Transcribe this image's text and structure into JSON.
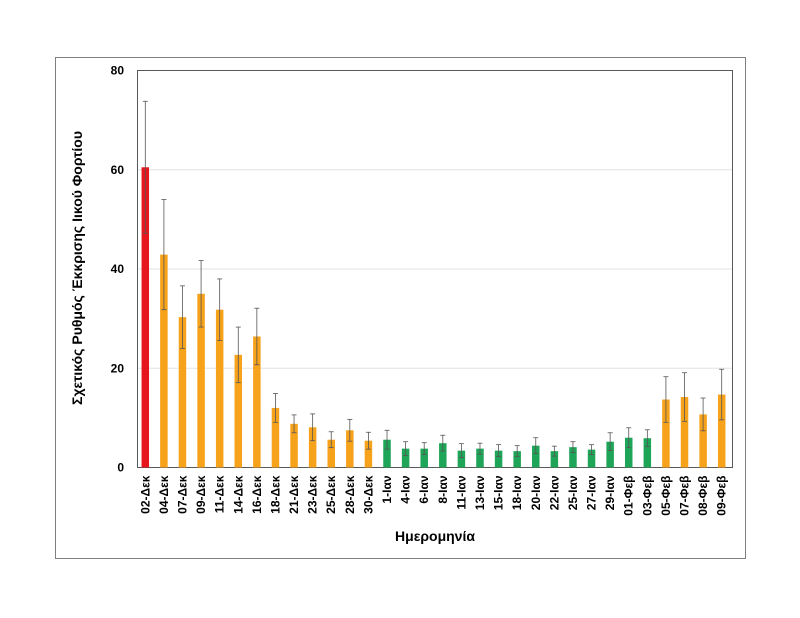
{
  "chart_data": {
    "type": "bar",
    "title": "",
    "xlabel": "Ημερομηνία",
    "ylabel": "Σχετικός Ρυθμός Έκκρισης Ιικού Φορτίου",
    "ylim": [
      0,
      80
    ],
    "yticks": [
      "0",
      "20",
      "40",
      "60",
      "80"
    ],
    "grid": "horizontal",
    "error_bars": true,
    "colors": {
      "red": "#e5171c",
      "orange": "#f7a21b",
      "green": "#1fa558"
    },
    "categories": [
      "02-Δεκ",
      "04-Δεκ",
      "07-Δεκ",
      "09-Δεκ",
      "11-Δεκ",
      "14-Δεκ",
      "16-Δεκ",
      "18-Δεκ",
      "21-Δεκ",
      "23-Δεκ",
      "25-Δεκ",
      "28-Δεκ",
      "30-Δεκ",
      "1-Ιαν",
      "4-Ιαν",
      "6-Ιαν",
      "8-Ιαν",
      "11-Ιαν",
      "13-Ιαν",
      "15-Ιαν",
      "18-Ιαν",
      "20-Ιαν",
      "22-Ιαν",
      "25-Ιαν",
      "27-Ιαν",
      "29-Ιαν",
      "01-Φεβ",
      "03-Φεβ",
      "05-Φεβ",
      "07-Φεβ",
      "08-Φεβ",
      "09-Φεβ"
    ],
    "values": [
      60.5,
      42.9,
      30.3,
      35.0,
      31.8,
      22.7,
      26.4,
      12.0,
      8.8,
      8.1,
      5.6,
      7.5,
      5.4,
      5.6,
      3.8,
      3.8,
      4.9,
      3.4,
      3.8,
      3.4,
      3.3,
      4.4,
      3.3,
      4.1,
      3.6,
      5.2,
      6.0,
      5.9,
      13.7,
      14.2,
      10.7,
      14.7
    ],
    "errors": [
      13.3,
      11.1,
      6.3,
      6.7,
      6.2,
      5.6,
      5.7,
      2.9,
      1.8,
      2.7,
      1.6,
      2.2,
      1.7,
      1.9,
      1.4,
      1.2,
      1.6,
      1.4,
      1.1,
      1.2,
      1.1,
      1.6,
      1.0,
      1.1,
      1.0,
      1.8,
      2.0,
      1.7,
      4.6,
      4.9,
      3.3,
      5.1
    ],
    "bar_colors": [
      "red",
      "orange",
      "orange",
      "orange",
      "orange",
      "orange",
      "orange",
      "orange",
      "orange",
      "orange",
      "orange",
      "orange",
      "orange",
      "green",
      "green",
      "green",
      "green",
      "green",
      "green",
      "green",
      "green",
      "green",
      "green",
      "green",
      "green",
      "green",
      "green",
      "green",
      "orange",
      "orange",
      "orange",
      "orange"
    ]
  }
}
